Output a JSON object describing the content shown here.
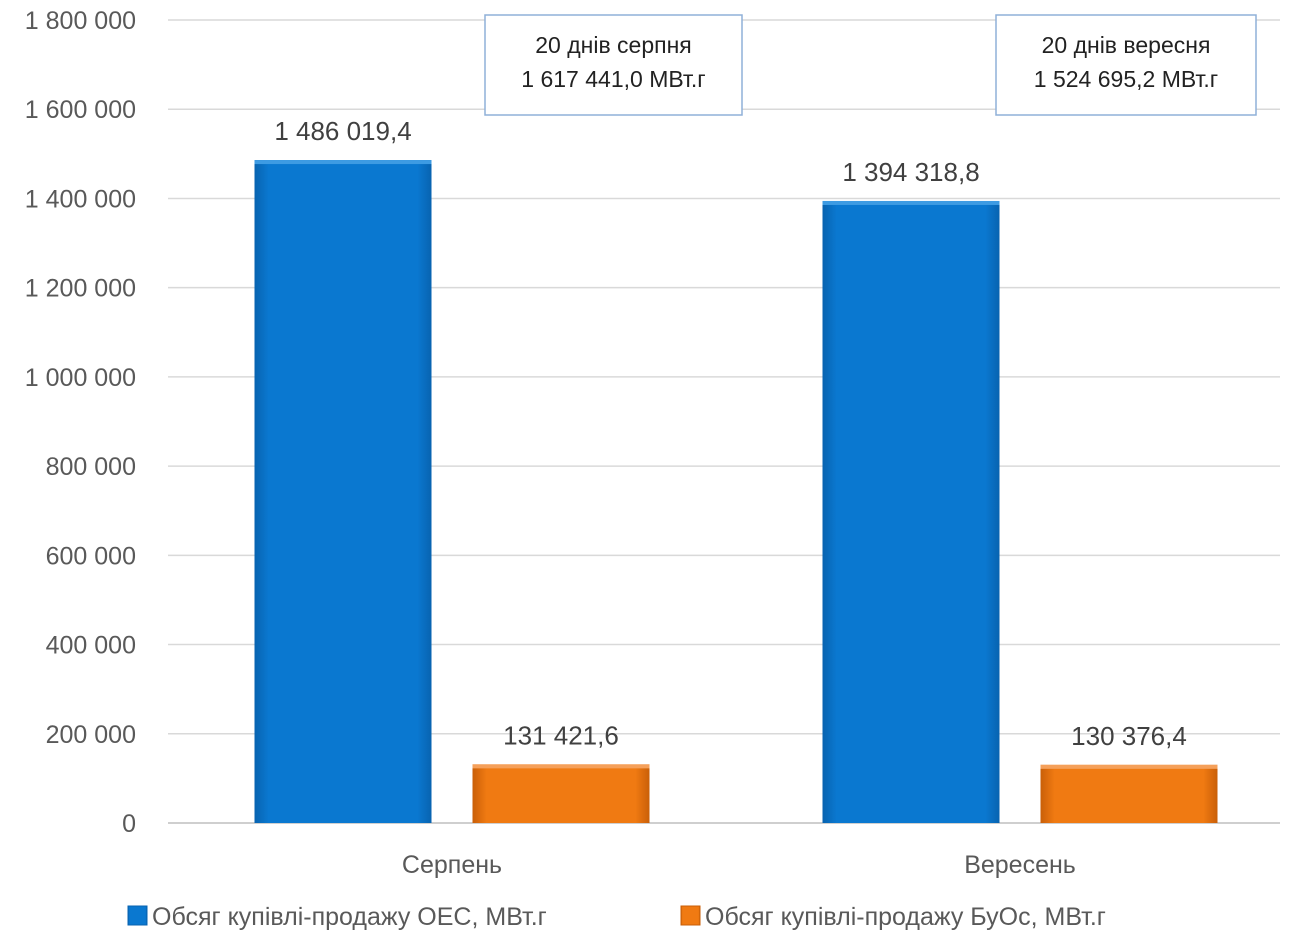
{
  "chart_data": {
    "type": "bar",
    "categories": [
      "Серпень",
      "Вересень"
    ],
    "series": [
      {
        "name": "Обсяг купівлі-продажу ОЕС, МВт.г",
        "values": [
          1486019.4,
          1394318.8
        ],
        "labels": [
          "1 486 019,4",
          "1 394 318,8"
        ],
        "color": "#0a78d0"
      },
      {
        "name": "Обсяг купівлі-продажу БуОс, МВт.г",
        "values": [
          131421.6,
          130376.4
        ],
        "labels": [
          "131 421,6",
          "130 376,4"
        ],
        "color": "#f07a12"
      }
    ],
    "ylim": [
      0,
      1800000
    ],
    "yticks": [
      0,
      200000,
      400000,
      600000,
      800000,
      1000000,
      1200000,
      1400000,
      1600000,
      1800000
    ],
    "ytick_labels": [
      "0",
      "200 000",
      "400 000",
      "600 000",
      "800 000",
      "1 000 000",
      "1 200 000",
      "1 400 000",
      "1 600 000",
      "1 800 000"
    ],
    "grid": true,
    "legend_position": "bottom",
    "annotations": [
      {
        "line1": "20 днів серпня",
        "line2": "1 617 441,0 МВт.г"
      },
      {
        "line1": "20 днів вересня",
        "line2": "1 524 695,2 МВт.г"
      }
    ]
  }
}
